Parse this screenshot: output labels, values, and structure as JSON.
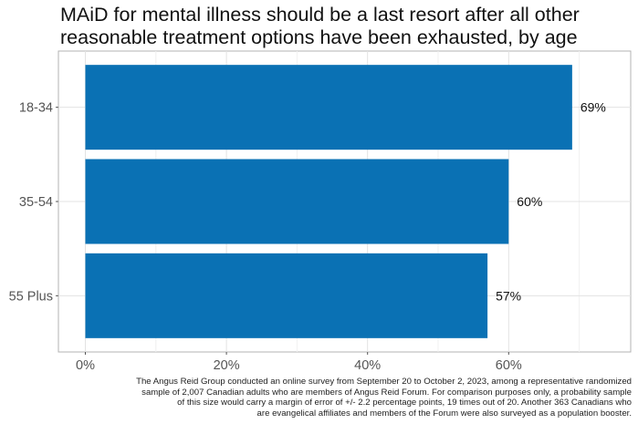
{
  "chart_data": {
    "type": "bar",
    "orientation": "horizontal",
    "title_lines": [
      "MAiD for mental illness should be a last resort after all other",
      "reasonable treatment options have been exhausted, by age"
    ],
    "categories": [
      "18-34",
      "35-54",
      "55 Plus"
    ],
    "values": [
      69,
      60,
      57
    ],
    "data_labels": [
      "69%",
      "60%",
      "57%"
    ],
    "xlim": [
      0,
      80
    ],
    "xticks": [
      0,
      20,
      40,
      60
    ],
    "xtick_labels": [
      "0%",
      "20%",
      "40%",
      "60%"
    ],
    "xlabel": "",
    "ylabel": "",
    "grid": true,
    "bar_color": "#0A71B4",
    "caption_lines": [
      "The Angus Reid Group conducted an online survey from September 20 to October 2, 2023, among a representative randomized",
      "sample of 2,007 Canadian adults who are members of Angus Reid Forum. For comparison purposes only, a probability sample",
      "of this size would carry a margin of error of +/- 2.2 percentage points, 19 times out of 20. Another 363 Canadians who",
      "are evangelical affiliates and members of the Forum were also surveyed as a population booster."
    ]
  }
}
